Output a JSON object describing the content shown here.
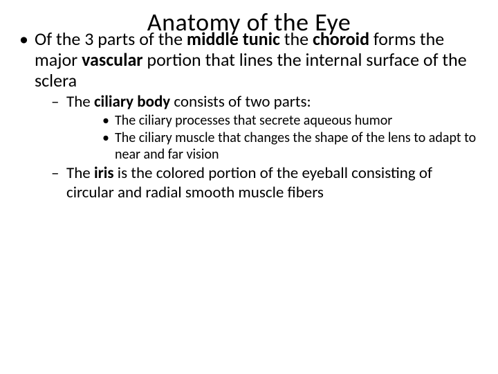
{
  "title": "Anatomy of the Eye",
  "bullets": {
    "p1a": "Of the 3 parts of the ",
    "p1b": "middle tunic ",
    "p1c": "the ",
    "p1d": "choroid ",
    "p1e": "forms the major ",
    "p1f": "vascular ",
    "p1g": "portion that lines the internal surface of the sclera",
    "p2a": "The ",
    "p2b": "ciliary body ",
    "p2c": "consists of two parts:",
    "p3": "The ciliary processes that secrete aqueous humor",
    "p4": "The ciliary muscle that changes the shape of the lens to adapt to near and far vision",
    "p5a": "The ",
    "p5b": "iris ",
    "p5c": "is the colored portion of the eyeball consisting of circular and radial smooth muscle fibers"
  },
  "style": {
    "title_fontsize": 36,
    "lvl1_fontsize": 26,
    "lvl2_fontsize": 23,
    "lvl3_fontsize": 20,
    "text_color": "#000000",
    "background_color": "#ffffff",
    "font_family": "Calibri"
  }
}
